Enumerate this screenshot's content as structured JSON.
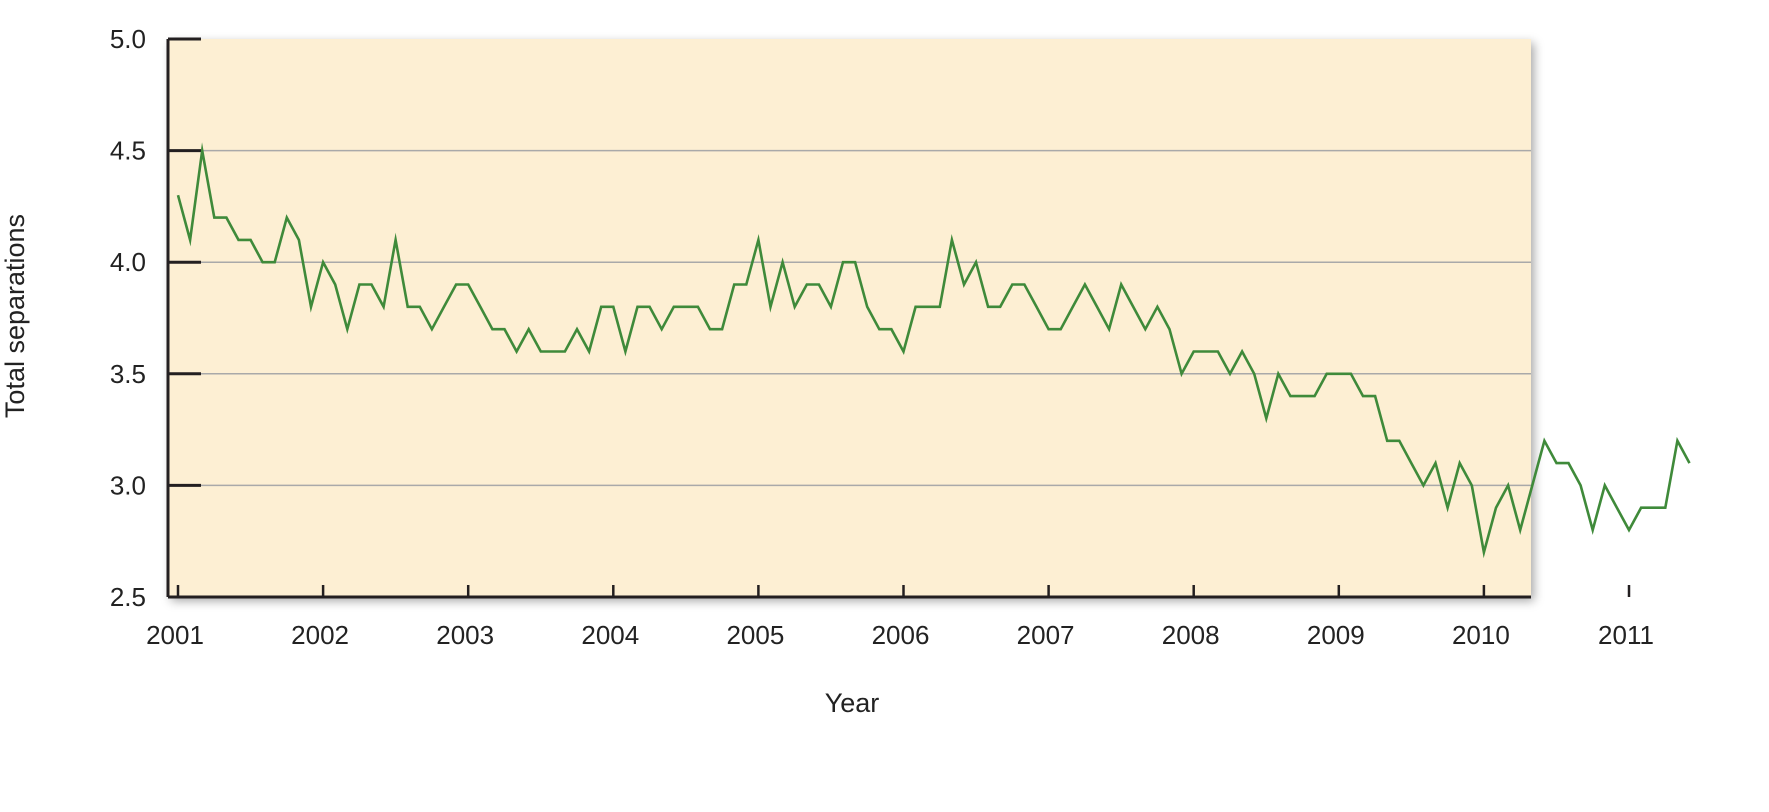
{
  "chart_data": {
    "type": "line",
    "title": "",
    "xlabel": "Year",
    "ylabel": "Total separations",
    "ylim": [
      2.5,
      5.0
    ],
    "xlim": [
      2001.0,
      2011.3
    ],
    "y_ticks": [
      "5.0",
      "4.5",
      "4.0",
      "3.5",
      "3.0",
      "2.5"
    ],
    "x_ticks": [
      "2001",
      "2002",
      "2003",
      "2004",
      "2005",
      "2006",
      "2007",
      "2008",
      "2009",
      "2010",
      "2011"
    ],
    "grid": "horizontal",
    "series": [
      {
        "frequency": "monthly",
        "start": "2001-01",
        "values": [
          4.3,
          4.1,
          4.5,
          4.2,
          4.2,
          4.1,
          4.1,
          4.0,
          4.0,
          4.2,
          4.1,
          3.8,
          4.0,
          3.9,
          3.7,
          3.9,
          3.9,
          3.8,
          4.1,
          3.8,
          3.8,
          3.7,
          3.8,
          3.9,
          3.9,
          3.8,
          3.7,
          3.7,
          3.6,
          3.7,
          3.6,
          3.6,
          3.6,
          3.7,
          3.6,
          3.8,
          3.8,
          3.6,
          3.8,
          3.8,
          3.7,
          3.8,
          3.8,
          3.8,
          3.7,
          3.7,
          3.9,
          3.9,
          4.1,
          3.8,
          4.0,
          3.8,
          3.9,
          3.9,
          3.8,
          4.0,
          4.0,
          3.8,
          3.7,
          3.7,
          3.6,
          3.8,
          3.8,
          3.8,
          4.1,
          3.9,
          4.0,
          3.8,
          3.8,
          3.9,
          3.9,
          3.8,
          3.7,
          3.7,
          3.8,
          3.9,
          3.8,
          3.7,
          3.9,
          3.8,
          3.7,
          3.8,
          3.7,
          3.5,
          3.6,
          3.6,
          3.6,
          3.5,
          3.6,
          3.5,
          3.3,
          3.5,
          3.4,
          3.4,
          3.4,
          3.5,
          3.5,
          3.5,
          3.4,
          3.4,
          3.2,
          3.2,
          3.1,
          3.0,
          3.1,
          2.9,
          3.1,
          3.0,
          2.7,
          2.9,
          3.0,
          2.8,
          3.0,
          3.2,
          3.1,
          3.1,
          3.0,
          2.8,
          3.0,
          2.9,
          2.8,
          2.9,
          2.9,
          2.9,
          3.2,
          3.1
        ]
      }
    ],
    "colors": {
      "plot_background": "#fdefd3",
      "line": "#3f8a3a",
      "gridline": "#a9a9a9",
      "axis": "#231f20"
    }
  }
}
